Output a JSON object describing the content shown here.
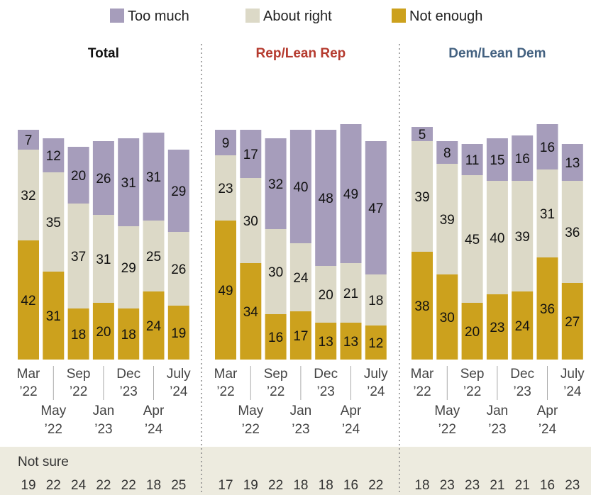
{
  "colors": {
    "too_much": "#A69DBB",
    "about_right": "#DCD9C7",
    "not_enough": "#CCA11D",
    "rep_title": "#B53A2E",
    "dem_title": "#436180",
    "total_title": "#111111",
    "footer_bg": "#EDEBDF"
  },
  "legend": [
    {
      "key": "too_much",
      "label": "Too  much"
    },
    {
      "key": "about_right",
      "label": "About right"
    },
    {
      "key": "not_enough",
      "label": "Not enough"
    }
  ],
  "footer": {
    "label": "Not sure"
  },
  "chart_data": {
    "type": "bar",
    "stacked": true,
    "categories": [
      "Mar '22",
      "May '22",
      "Sep '22",
      "Jan '23",
      "Dec '23",
      "Apr '24",
      "July '24"
    ],
    "series_names": [
      "Not enough",
      "About right",
      "Too much"
    ],
    "legend_position": "top",
    "panels": [
      {
        "title": "Total",
        "not_enough": [
          42,
          31,
          18,
          20,
          18,
          24,
          19
        ],
        "about_right": [
          32,
          35,
          37,
          31,
          29,
          25,
          26
        ],
        "too_much": [
          7,
          12,
          20,
          26,
          31,
          31,
          29
        ],
        "not_sure": [
          19,
          22,
          24,
          22,
          22,
          18,
          25
        ]
      },
      {
        "title": "Rep/Lean Rep",
        "not_enough": [
          49,
          34,
          16,
          17,
          13,
          13,
          12
        ],
        "about_right": [
          23,
          30,
          30,
          24,
          20,
          21,
          18
        ],
        "too_much": [
          9,
          17,
          32,
          40,
          48,
          49,
          47
        ],
        "not_sure": [
          17,
          19,
          22,
          18,
          18,
          16,
          22
        ]
      },
      {
        "title": "Dem/Lean Dem",
        "not_enough": [
          38,
          30,
          20,
          23,
          24,
          36,
          27
        ],
        "about_right": [
          39,
          39,
          45,
          40,
          39,
          31,
          36
        ],
        "too_much": [
          5,
          8,
          11,
          15,
          16,
          16,
          13
        ],
        "not_sure": [
          18,
          23,
          23,
          21,
          21,
          16,
          23
        ]
      }
    ],
    "axis_labels": {
      "upper": [
        {
          "index": 0,
          "line1": "Mar",
          "line2": "’22"
        },
        {
          "index": 2,
          "line1": "Sep",
          "line2": "’22"
        },
        {
          "index": 4,
          "line1": "Dec",
          "line2": "’23"
        },
        {
          "index": 6,
          "line1": "July",
          "line2": "’24"
        }
      ],
      "lower": [
        {
          "index": 1,
          "line1": "May",
          "line2": "’22"
        },
        {
          "index": 3,
          "line1": "Jan",
          "line2": "’23"
        },
        {
          "index": 5,
          "line1": "Apr",
          "line2": "’24"
        }
      ]
    }
  }
}
